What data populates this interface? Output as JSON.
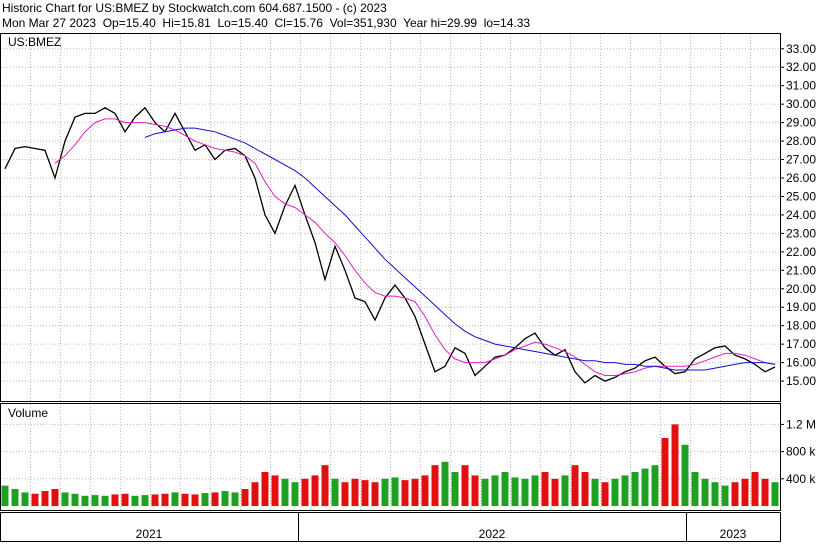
{
  "header": {
    "line1": "Historic Chart for US:BMEZ by Stockwatch.com 604.687.1500 - (c) 2023",
    "line2": "Mon Mar 27 2023  Op=15.40  Hi=15.81  Lo=15.40  Cl=15.76  Vol=351,930  Year hi=29.99  lo=14.33"
  },
  "chart_data": [
    {
      "type": "line",
      "title": "US:BMEZ",
      "ylim": [
        13.92,
        33.8
      ],
      "yticks": [
        {
          "value": 15,
          "label": "15.00"
        },
        {
          "value": 16,
          "label": "16.00"
        },
        {
          "value": 17,
          "label": "17.00"
        },
        {
          "value": 18,
          "label": "18.00"
        },
        {
          "value": 19,
          "label": "19.00"
        },
        {
          "value": 20,
          "label": "20.00"
        },
        {
          "value": 21,
          "label": "21.00"
        },
        {
          "value": 22,
          "label": "22.00"
        },
        {
          "value": 23,
          "label": "23.00"
        },
        {
          "value": 24,
          "label": "24.00"
        },
        {
          "value": 25,
          "label": "25.00"
        },
        {
          "value": 26,
          "label": "26.00"
        },
        {
          "value": 27,
          "label": "27.00"
        },
        {
          "value": 28,
          "label": "28.00"
        },
        {
          "value": 29,
          "label": "29.00"
        },
        {
          "value": 30,
          "label": "30.00"
        },
        {
          "value": 31,
          "label": "31.00"
        },
        {
          "value": 32,
          "label": "32.00"
        },
        {
          "value": 33,
          "label": "33.00"
        }
      ],
      "grid": true,
      "series": [
        {
          "color": "#000000",
          "values": [
            26.5,
            27.6,
            27.7,
            27.6,
            27.5,
            26,
            28,
            29.3,
            29.5,
            29.5,
            29.8,
            29.5,
            28.5,
            29.3,
            29.8,
            29,
            28.5,
            29.5,
            28.5,
            27.5,
            27.8,
            27,
            27.5,
            27.6,
            27.2,
            26,
            24,
            23,
            24.5,
            25.6,
            24,
            22.5,
            20.5,
            22.3,
            21,
            19.5,
            19.3,
            18.3,
            19.5,
            20.2,
            19.5,
            18.5,
            17,
            15.5,
            15.8,
            16.8,
            16.5,
            15.3,
            15.8,
            16.3,
            16.4,
            16.8,
            17.3,
            17.6,
            16.8,
            16.4,
            16.7,
            15.5,
            14.9,
            15.3,
            15,
            15.2,
            15.5,
            15.7,
            16.1,
            16.3,
            15.8,
            15.4,
            15.5,
            16.2,
            16.5,
            16.8,
            16.9,
            16.4,
            16.2,
            15.9,
            15.5,
            15.76
          ]
        },
        {
          "color": "#e020c0",
          "values": [
            null,
            null,
            null,
            null,
            null,
            26.8,
            27.2,
            27.8,
            28.5,
            29,
            29.2,
            29.2,
            29,
            29,
            29,
            28.9,
            28.8,
            28.6,
            28.3,
            28,
            27.8,
            27.6,
            27.5,
            27.4,
            27.2,
            26.8,
            25.8,
            25,
            24.6,
            24.4,
            24,
            23.6,
            23,
            22.5,
            21.8,
            21,
            20.3,
            19.8,
            19.6,
            19.6,
            19.5,
            19.3,
            18.5,
            17.5,
            16.7,
            16.2,
            16,
            16,
            16,
            16.2,
            16.4,
            16.7,
            16.9,
            17.1,
            17,
            16.8,
            16.6,
            16.3,
            15.9,
            15.5,
            15.3,
            15.3,
            15.4,
            15.5,
            15.7,
            15.8,
            15.8,
            15.8,
            15.8,
            15.9,
            16.1,
            16.3,
            16.5,
            16.5,
            16.4,
            16.2,
            16,
            15.9
          ]
        },
        {
          "color": "#1010d0",
          "values": [
            null,
            null,
            null,
            null,
            null,
            null,
            null,
            null,
            null,
            null,
            null,
            null,
            null,
            null,
            28.2,
            28.4,
            28.5,
            28.6,
            28.7,
            28.7,
            28.6,
            28.5,
            28.3,
            28.1,
            27.9,
            27.6,
            27.3,
            27,
            26.7,
            26.4,
            26,
            25.5,
            25,
            24.5,
            24,
            23.4,
            22.8,
            22.2,
            21.6,
            21.1,
            20.6,
            20.1,
            19.6,
            19.1,
            18.6,
            18.1,
            17.7,
            17.4,
            17.2,
            17,
            16.9,
            16.8,
            16.7,
            16.6,
            16.5,
            16.4,
            16.3,
            16.2,
            16.1,
            16.1,
            16,
            16,
            15.9,
            15.9,
            15.8,
            15.8,
            15.7,
            15.6,
            15.6,
            15.6,
            15.6,
            15.7,
            15.8,
            15.9,
            16,
            16,
            16,
            15.9
          ]
        }
      ]
    },
    {
      "type": "bar",
      "title": "Volume",
      "ylim": [
        0,
        1500000
      ],
      "yticks": [
        {
          "value": 400000,
          "label": "400 k"
        },
        {
          "value": 800000,
          "label": "800 k"
        },
        {
          "value": 1200000,
          "label": "1.2 M"
        }
      ],
      "grid": true,
      "up_color": "#20a020",
      "down_color": "#e01010",
      "values": [
        300000,
        250000,
        200000,
        180000,
        220000,
        250000,
        200000,
        180000,
        150000,
        160000,
        150000,
        170000,
        180000,
        150000,
        160000,
        170000,
        180000,
        200000,
        180000,
        170000,
        190000,
        200000,
        220000,
        200000,
        250000,
        350000,
        500000,
        450000,
        400000,
        350000,
        400000,
        450000,
        600000,
        400000,
        350000,
        400000,
        380000,
        350000,
        400000,
        420000,
        380000,
        400000,
        450000,
        600000,
        650000,
        500000,
        600000,
        450000,
        400000,
        450000,
        500000,
        420000,
        400000,
        450000,
        500000,
        400000,
        450000,
        600000,
        500000,
        400000,
        350000,
        400000,
        450000,
        500000,
        550000,
        600000,
        1000000,
        1200000,
        900000,
        500000,
        400000,
        350000,
        300000,
        350000,
        400000,
        500000,
        400000,
        350000
      ]
    }
  ],
  "x_labels": [
    "2021",
    "2022",
    "2023"
  ]
}
